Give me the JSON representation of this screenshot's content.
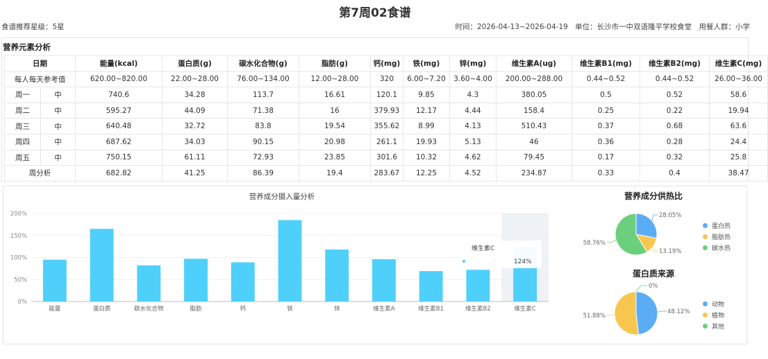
{
  "header": {
    "title": "第7周02食谱",
    "rating": "食谱推荐星级：5星",
    "time": "时间：2026-04-13~2026-04-19",
    "unit": "单位：长沙市一中双语隆平学校食堂",
    "crowd": "用餐人群：小学"
  },
  "section_title": "营养元素分析",
  "table": {
    "headers": [
      "日期",
      "能量(kcal)",
      "蛋白质(g)",
      "碳水化合物(g)",
      "脂肪(g)",
      "钙(mg)",
      "铁(mg)",
      "锌(mg)",
      "维生素A(ug)",
      "维生素B1(mg)",
      "维生素B2(mg)",
      "维生素C(mg)"
    ],
    "reference": {
      "label": "每人每天参考值",
      "values": [
        "620.00~820.00",
        "22.00~28.00",
        "76.00~134.00",
        "12.00~28.00",
        "320",
        "6.00~7.20",
        "3.60~4.00",
        "200.00~288.00",
        "0.44~0.52",
        "0.44~0.52",
        "26.00~36.00"
      ]
    },
    "rows": [
      {
        "day": "周一",
        "meal": "中",
        "values": [
          "740.6",
          "34.28",
          "113.7",
          "16.61",
          "120.1",
          "9.85",
          "4.3",
          "380.05",
          "0.5",
          "0.52",
          "58.6"
        ]
      },
      {
        "day": "周二",
        "meal": "中",
        "values": [
          "595.27",
          "44.09",
          "71.38",
          "16",
          "379.93",
          "12.17",
          "4.44",
          "158.4",
          "0.25",
          "0.22",
          "19.94"
        ]
      },
      {
        "day": "周三",
        "meal": "中",
        "values": [
          "640.48",
          "32.72",
          "83.8",
          "19.54",
          "355.62",
          "8.99",
          "4.13",
          "510.43",
          "0.37",
          "0.68",
          "63.6"
        ]
      },
      {
        "day": "周四",
        "meal": "中",
        "values": [
          "687.62",
          "34.03",
          "90.15",
          "20.98",
          "261.1",
          "19.93",
          "5.13",
          "46",
          "0.36",
          "0.28",
          "24.4"
        ]
      },
      {
        "day": "周五",
        "meal": "中",
        "values": [
          "750.15",
          "61.11",
          "72.93",
          "23.85",
          "301.6",
          "10.32",
          "4.62",
          "79.45",
          "0.17",
          "0.32",
          "25.8"
        ]
      }
    ],
    "summary": {
      "label": "周分析",
      "values": [
        "682.82",
        "41.25",
        "86.39",
        "19.4",
        "283.67",
        "12.25",
        "4.52",
        "234.87",
        "0.33",
        "0.4",
        "38.47"
      ]
    }
  },
  "chart_data": [
    {
      "type": "bar",
      "title": "营养成分摄入量分析",
      "categories": [
        "能量",
        "蛋白质",
        "碳水化合物",
        "脂肪",
        "钙",
        "铁",
        "锌",
        "维生素A",
        "维生素B1",
        "维生素B2",
        "维生素C"
      ],
      "values": [
        95,
        165,
        82,
        97,
        89,
        185,
        118,
        96,
        69,
        72,
        124
      ],
      "ylim": [
        0,
        200
      ],
      "yticks": [
        "0%",
        "50%",
        "100%",
        "150%",
        "200%"
      ],
      "color": "#4fd0fb",
      "highlight_color": "#eef1f6",
      "tooltip": {
        "label": "维生素C",
        "value": "124%"
      }
    },
    {
      "type": "pie",
      "title": "营养成分供热比",
      "slices": [
        {
          "name": "蛋白热",
          "value": 28.05,
          "label": "28.05%",
          "color": "#5aacf5"
        },
        {
          "name": "脂肪热",
          "value": 13.19,
          "label": "13.19%",
          "color": "#f6c64f"
        },
        {
          "name": "碳水热",
          "value": 58.76,
          "label": "58.76%",
          "color": "#6ccf7e"
        }
      ]
    },
    {
      "type": "pie",
      "title": "蛋白质来源",
      "slices": [
        {
          "name": "动物",
          "value": 48.12,
          "label": "48.12%",
          "color": "#5aacf5"
        },
        {
          "name": "植物",
          "value": 51.88,
          "label": "51.88%",
          "color": "#f6c64f"
        },
        {
          "name": "其他",
          "value": 0,
          "label": "0%",
          "color": "#6ccf7e"
        }
      ]
    }
  ]
}
